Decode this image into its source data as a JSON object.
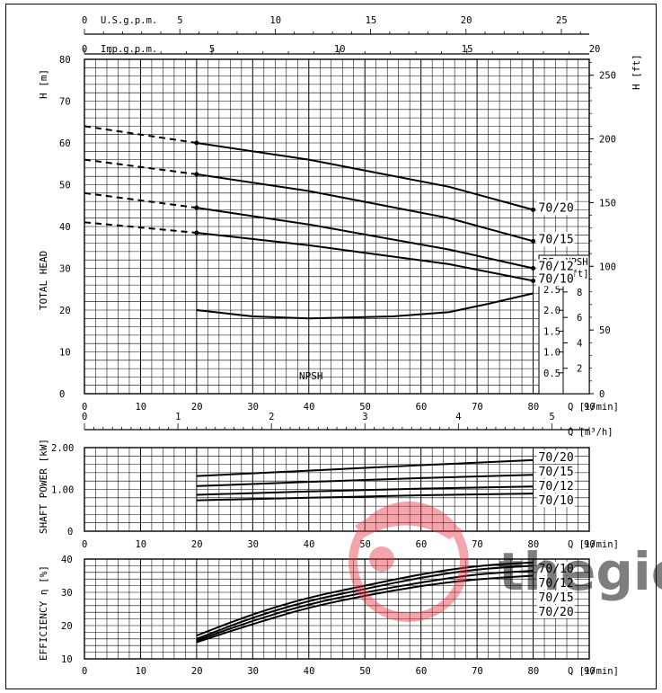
{
  "top_axes": {
    "usgpm": {
      "label": "U.S.g.p.m.",
      "ticks": [
        0,
        5,
        10,
        15,
        20,
        25
      ]
    },
    "impgpm": {
      "label": "Imp.g.p.m.",
      "ticks": [
        0,
        5,
        10,
        15,
        20
      ]
    }
  },
  "head_chart": {
    "ylabel_top": "H [m]",
    "ylabel_mid": "TOTAL HEAD",
    "ylabel_right": "H [ft]",
    "yticks": [
      0,
      10,
      20,
      30,
      40,
      50,
      60,
      70,
      80
    ],
    "ft_ticks": [
      0,
      50,
      100,
      150,
      200,
      250
    ],
    "xticks": [
      0,
      10,
      20,
      30,
      40,
      50,
      60,
      70,
      80,
      90
    ],
    "xlabel": "Q [l/min]",
    "npsh_label": "NPSH",
    "npsh_box": {
      "title1": "RE. NPSH",
      "title2": "[m] [ft]",
      "m_ticks": [
        0.5,
        1.0,
        1.5,
        2.0,
        2.5
      ],
      "ft_ticks": [
        2,
        4,
        6,
        8
      ]
    }
  },
  "m3h_axis": {
    "label": "Q [m³/h]",
    "ticks": [
      0,
      1,
      2,
      3,
      4,
      5
    ]
  },
  "power_chart": {
    "ylabel": "SHAFT POWER [kW]",
    "yticks": [
      "0",
      "1.00",
      "2.00"
    ],
    "xticks": [
      0,
      10,
      20,
      30,
      40,
      50,
      60,
      70,
      80,
      90
    ],
    "xlabel": "Q [l/min]"
  },
  "eff_chart": {
    "ylabel": "EFFICIENCY η [%]",
    "yticks": [
      10,
      20,
      30,
      40
    ],
    "xticks": [
      0,
      10,
      20,
      30,
      40,
      50,
      60,
      70,
      80,
      90
    ],
    "xlabel": "Q [l/min]"
  },
  "watermark": {
    "text": "thegioi",
    "color": "#2fb24a",
    "logo_color": "#e63946"
  },
  "chart_data": [
    {
      "type": "line",
      "title": "TOTAL HEAD",
      "xlabel": "Q [l/min]",
      "ylabel": "H [m]",
      "xlim": [
        0,
        90
      ],
      "ylim": [
        0,
        80
      ],
      "grid": true,
      "series": [
        {
          "name": "70/20",
          "x": [
            0,
            20,
            40,
            65,
            80
          ],
          "y": [
            64,
            60,
            56,
            49.5,
            44
          ],
          "dashed_until_x": 20
        },
        {
          "name": "70/15",
          "x": [
            0,
            20,
            40,
            65,
            80
          ],
          "y": [
            56,
            52.5,
            48.5,
            42,
            36.5
          ],
          "dashed_until_x": 20
        },
        {
          "name": "70/12",
          "x": [
            0,
            20,
            40,
            65,
            80
          ],
          "y": [
            48,
            44.5,
            40.5,
            34.5,
            30
          ],
          "dashed_until_x": 20
        },
        {
          "name": "70/10",
          "x": [
            0,
            20,
            40,
            65,
            80
          ],
          "y": [
            41,
            38.5,
            35.5,
            31,
            27
          ],
          "dashed_until_x": 20
        },
        {
          "name": "NPSH",
          "x": [
            20,
            30,
            40,
            55,
            65,
            72,
            80
          ],
          "y": [
            20,
            18.5,
            18,
            18.5,
            19.5,
            21.5,
            24
          ]
        }
      ]
    },
    {
      "type": "line",
      "title": "SHAFT POWER",
      "xlabel": "Q [l/min]",
      "ylabel": "SHAFT POWER [kW]",
      "xlim": [
        0,
        90
      ],
      "ylim": [
        0,
        2.0
      ],
      "grid": true,
      "series": [
        {
          "name": "70/20",
          "x": [
            20,
            40,
            60,
            80
          ],
          "y": [
            1.32,
            1.45,
            1.58,
            1.7
          ]
        },
        {
          "name": "70/15",
          "x": [
            20,
            40,
            60,
            80
          ],
          "y": [
            1.08,
            1.18,
            1.27,
            1.35
          ]
        },
        {
          "name": "70/12",
          "x": [
            20,
            40,
            60,
            80
          ],
          "y": [
            0.87,
            0.95,
            1.02,
            1.07
          ]
        },
        {
          "name": "70/10",
          "x": [
            20,
            40,
            60,
            80
          ],
          "y": [
            0.74,
            0.8,
            0.86,
            0.9
          ]
        }
      ]
    },
    {
      "type": "line",
      "title": "EFFICIENCY",
      "xlabel": "Q [l/min]",
      "ylabel": "EFFICIENCY η [%]",
      "xlim": [
        0,
        90
      ],
      "ylim": [
        10,
        40
      ],
      "grid": true,
      "series": [
        {
          "name": "70/10",
          "x": [
            20,
            30,
            40,
            50,
            60,
            70,
            80
          ],
          "y": [
            17,
            23.5,
            28.5,
            32,
            35.5,
            38,
            39
          ]
        },
        {
          "name": "70/12",
          "x": [
            20,
            30,
            40,
            50,
            60,
            70,
            80
          ],
          "y": [
            16,
            22.5,
            27.5,
            31,
            34.5,
            37,
            38
          ]
        },
        {
          "name": "70/15",
          "x": [
            20,
            30,
            40,
            50,
            60,
            70,
            80
          ],
          "y": [
            15.5,
            21.5,
            26.5,
            30,
            33,
            35.5,
            36.5
          ]
        },
        {
          "name": "70/20",
          "x": [
            20,
            30,
            40,
            50,
            60,
            70,
            80
          ],
          "y": [
            15,
            20.5,
            25.5,
            29,
            32,
            34,
            35
          ]
        }
      ]
    }
  ]
}
